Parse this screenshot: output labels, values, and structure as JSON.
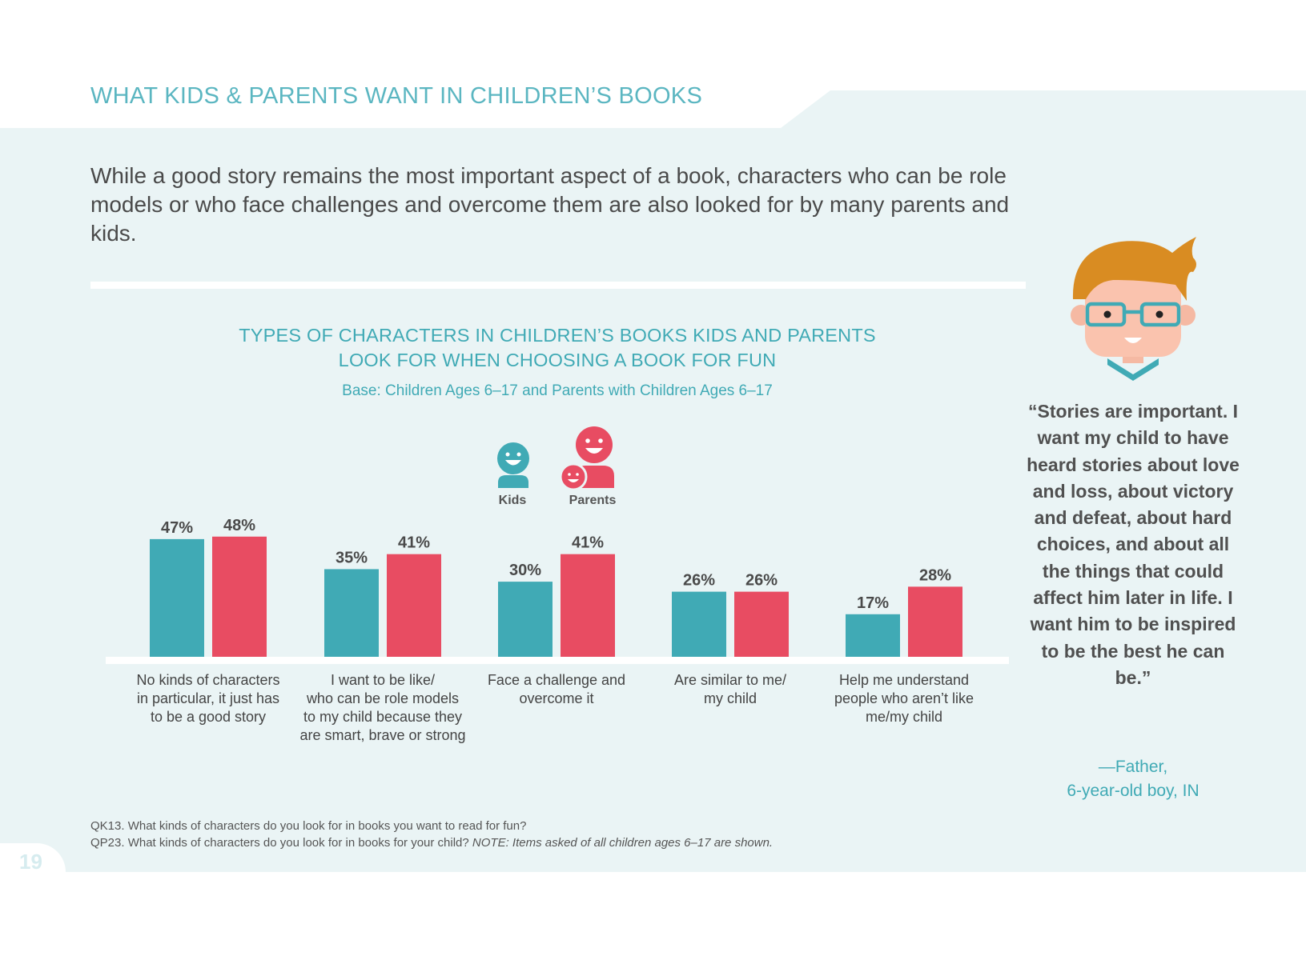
{
  "header": {
    "title": "WHAT KIDS & PARENTS WANT IN CHILDREN’S BOOKS"
  },
  "intro": "While a good story remains the most important aspect of a book, characters who can be role models or who face challenges and overcome them are also looked for by many parents and kids.",
  "legend": {
    "kids": "Kids",
    "parents": "Parents"
  },
  "colors": {
    "kids": "#40aab5",
    "parents": "#e84c62",
    "panel": "#eaf4f5",
    "title": "#5bb6c1"
  },
  "chart_data": {
    "type": "bar",
    "title": "TYPES OF CHARACTERS IN CHILDREN’S BOOKS KIDS AND PARENTS LOOK FOR WHEN CHOOSING A BOOK FOR FUN",
    "title_line1": "TYPES OF CHARACTERS IN CHILDREN’S BOOKS KIDS AND PARENTS",
    "title_line2": "LOOK FOR WHEN CHOOSING A BOOK FOR FUN",
    "subtitle": "Base: Children Ages 6–17 and Parents with Children Ages 6–17",
    "xlabel": "",
    "ylabel": "",
    "ylim": [
      0,
      55
    ],
    "categories": [
      [
        "No kinds of characters",
        "in particular, it just has",
        "to be a good story"
      ],
      [
        "I want to be like/",
        "who can be role models",
        "to my child because they",
        "are smart, brave or strong"
      ],
      [
        "Face a challenge and",
        "overcome it"
      ],
      [
        "Are similar to me/",
        "my child"
      ],
      [
        "Help me understand",
        "people who aren’t like",
        "me/my child"
      ]
    ],
    "series": [
      {
        "name": "Kids",
        "values": [
          47,
          35,
          30,
          26,
          17
        ]
      },
      {
        "name": "Parents",
        "values": [
          48,
          41,
          41,
          26,
          28
        ]
      }
    ],
    "value_labels": {
      "Kids": [
        "47%",
        "35%",
        "30%",
        "26%",
        "17%"
      ],
      "Parents": [
        "48%",
        "41%",
        "41%",
        "26%",
        "28%"
      ]
    }
  },
  "quote": {
    "text": "“Stories are important. I want my child to have heard stories about love and loss, about victory and defeat, about hard choices, and about all the things that could affect him later in life. I want him to be inspired to be the best he can be.”",
    "attribution_line1": "—Father,",
    "attribution_line2": "6-year-old boy, IN"
  },
  "footnotes": {
    "line1": "QK13. What kinds of characters do you look for in books you want to read for fun?",
    "line2_main": "QP23. What kinds of characters do you look for in books for your child? ",
    "line2_note": "NOTE: Items asked of all children ages 6–17 are shown."
  },
  "page_number": "19"
}
